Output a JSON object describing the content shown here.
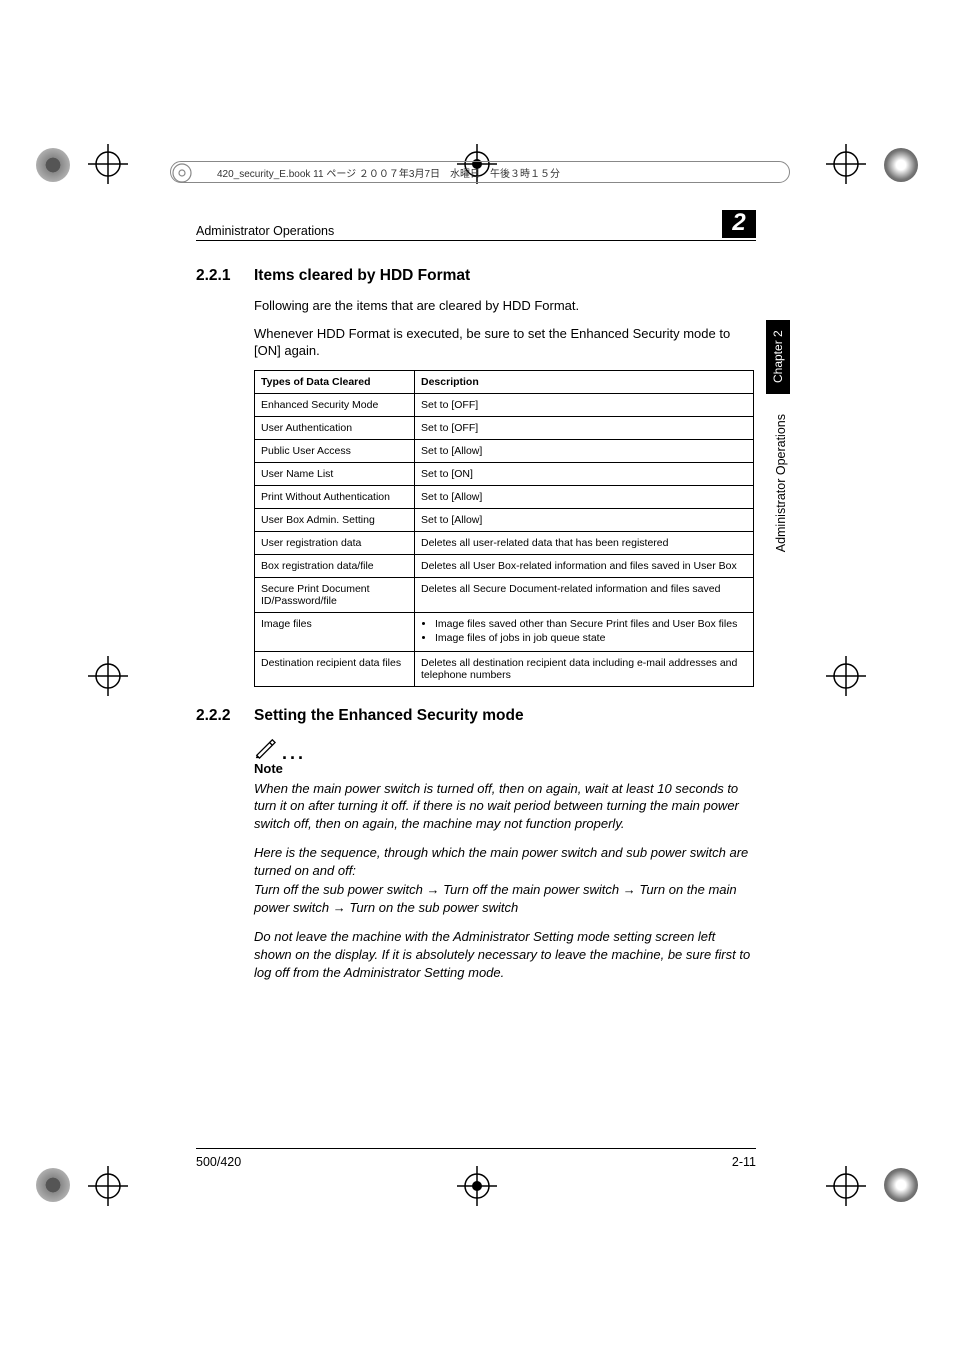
{
  "fileHeader": "420_security_E.book  11 ページ  ２００７年3月7日　水曜日　午後３時１５分",
  "runningHead": "Administrator Operations",
  "chapterNum": "2",
  "sideTab": "Chapter 2",
  "sideLabel": "Administrator Operations",
  "section1": {
    "num": "2.2.1",
    "title": "Items cleared by HDD Format"
  },
  "para1": "Following are the items that are cleared by HDD Format.",
  "para2": "Whenever HDD Format is executed, be sure to set the Enhanced Security mode to [ON] again.",
  "table": {
    "head": [
      "Types of Data Cleared",
      "Description"
    ],
    "rows": [
      {
        "c1": "Enhanced Security Mode",
        "c2": "Set to [OFF]"
      },
      {
        "c1": "User Authentication",
        "c2": "Set to [OFF]"
      },
      {
        "c1": "Public User Access",
        "c2": "Set to [Allow]"
      },
      {
        "c1": "User Name List",
        "c2": "Set to [ON]"
      },
      {
        "c1": "Print Without Authentication",
        "c2": "Set to [Allow]"
      },
      {
        "c1": "User Box Admin. Setting",
        "c2": "Set to [Allow]"
      },
      {
        "c1": "User registration data",
        "c2": "Deletes all user-related data that has been registered"
      },
      {
        "c1": "Box registration data/file",
        "c2": "Deletes all User Box-related information and files saved in User Box"
      },
      {
        "c1": "Secure Print Document ID/Password/file",
        "c2": "Deletes all Secure Document-related information and files saved"
      },
      {
        "c1": "Image files",
        "bullets": [
          "Image files saved other than Secure Print files and User Box files",
          "Image files of jobs in job queue state"
        ]
      },
      {
        "c1": "Destination recipient data files",
        "c2": "Deletes all destination recipient data including e-mail addresses and telephone numbers"
      }
    ]
  },
  "section2": {
    "num": "2.2.2",
    "title": "Setting the Enhanced Security mode"
  },
  "noteLabel": "Note",
  "note1a": "When the main power switch is turned off, then on again, wait at least 10 seconds to turn it on after turning it off. if there is no wait period between turning the main power switch off, then on again, the machine may not function properly.",
  "note1b": "Here is the sequence, through which the main power switch and sub power switch are turned on and off:",
  "note1c_pre": "Turn off the sub power switch ",
  "note1c_mid1": " Turn off the main power switch ",
  "note1c_mid2": " Turn on the main power switch ",
  "note1c_end": " Turn on the sub power switch",
  "note2": "Do not leave the machine with the Administrator Setting mode setting screen left shown on the display. If it is absolutely necessary to leave the machine, be sure first to log off from the Administrator Setting mode.",
  "footerLeft": "500/420",
  "footerRight": "2-11"
}
